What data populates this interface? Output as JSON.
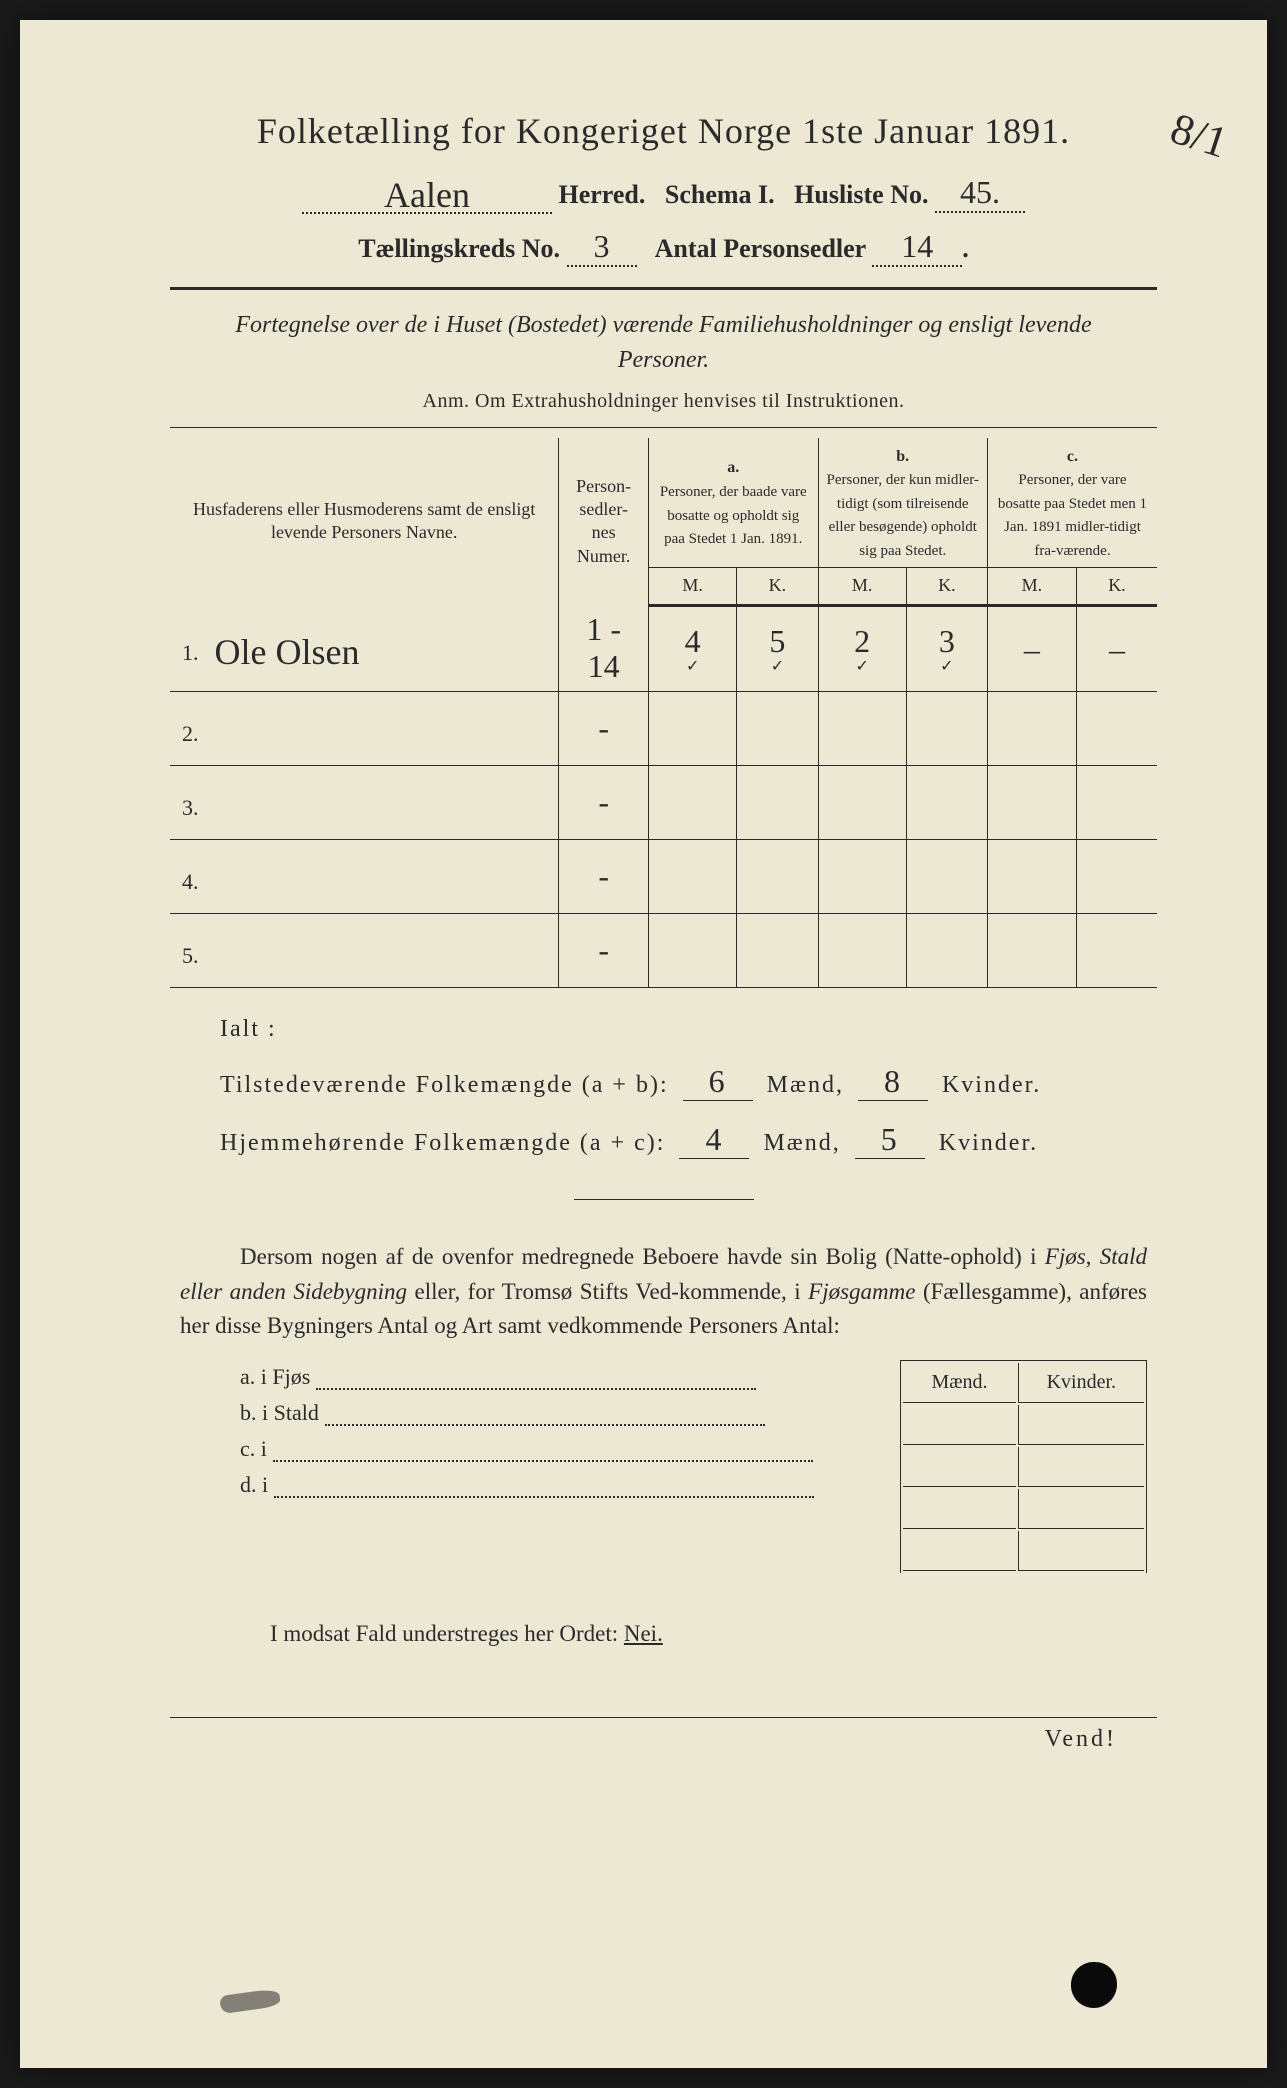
{
  "title": "Folketælling for Kongeriget Norge 1ste Januar 1891.",
  "corner_mark": "8/1",
  "header": {
    "herred_value": "Aalen",
    "herred_label": "Herred.",
    "schema_label": "Schema I.",
    "husliste_label": "Husliste No.",
    "husliste_value": "45.",
    "kreds_label": "Tællingskreds No.",
    "kreds_value": "3",
    "antal_label": "Antal Personsedler",
    "antal_value": "14"
  },
  "subtitle": "Fortegnelse over de i Huset (Bostedet) værende Familiehusholdninger og ensligt levende Personer.",
  "anm": "Anm. Om Extrahusholdninger henvises til Instruktionen.",
  "columns": {
    "name": "Husfaderens eller Husmoderens samt de ensligt levende Personers Navne.",
    "numer": "Person-\nsedler-\nnes\nNumer.",
    "a_label": "a.",
    "a_text": "Personer, der baade vare bosatte og opholdt sig paa Stedet 1 Jan. 1891.",
    "b_label": "b.",
    "b_text": "Personer, der kun midler-tidigt (som tilreisende eller besøgende) opholdt sig paa Stedet.",
    "c_label": "c.",
    "c_text": "Personer, der vare bosatte paa Stedet men 1 Jan. 1891 midler-tidigt fra-værende.",
    "M": "M.",
    "K": "K."
  },
  "rows": [
    {
      "n": "1.",
      "name": "Ole Olsen",
      "numer": "1 - 14",
      "aM": "4",
      "aK": "5",
      "bM": "2",
      "bK": "3",
      "cM": "–",
      "cK": "–",
      "ticks": true
    },
    {
      "n": "2.",
      "name": "",
      "numer": "-",
      "aM": "",
      "aK": "",
      "bM": "",
      "bK": "",
      "cM": "",
      "cK": ""
    },
    {
      "n": "3.",
      "name": "",
      "numer": "-",
      "aM": "",
      "aK": "",
      "bM": "",
      "bK": "",
      "cM": "",
      "cK": ""
    },
    {
      "n": "4.",
      "name": "",
      "numer": "-",
      "aM": "",
      "aK": "",
      "bM": "",
      "bK": "",
      "cM": "",
      "cK": ""
    },
    {
      "n": "5.",
      "name": "",
      "numer": "-",
      "aM": "",
      "aK": "",
      "bM": "",
      "bK": "",
      "cM": "",
      "cK": ""
    }
  ],
  "ialt": "Ialt :",
  "sums": {
    "line1_label": "Tilstedeværende Folkemængde (a + b):",
    "line1_m": "6",
    "line1_k": "8",
    "line2_label": "Hjemmehørende Folkemængde (a + c):",
    "line2_m": "4",
    "line2_k": "5",
    "m_label": "Mænd,",
    "k_label": "Kvinder."
  },
  "paragraph": {
    "p1a": "Dersom nogen af de ovenfor medregnede Beboere havde sin Bolig (Natte-ophold) i ",
    "fjos": "Fjøs, Stald eller anden Sidebygning",
    "p1b": " eller, for Tromsø Stifts Ved-kommende, i ",
    "fgamme": "Fjøsgamme",
    "p1c": " (Fællesgamme), anføres her disse Bygningers Antal og Art samt vedkommende Personers Antal:"
  },
  "mkbox": {
    "m": "Mænd.",
    "k": "Kvinder."
  },
  "abcd": {
    "a": "a.  i      Fjøs",
    "b": "b.  i      Stald",
    "c": "c.  i",
    "d": "d.  i"
  },
  "modsat": "I modsat Fald understreges her Ordet: ",
  "nei": "Nei.",
  "vend": "Vend!"
}
